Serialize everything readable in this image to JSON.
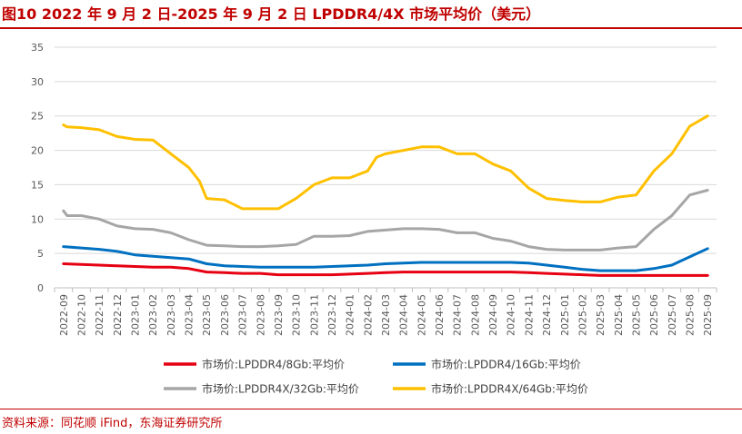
{
  "title": "图10  2022 年 9 月 2 日-2025 年 9 月 2 日 LPDDR4/4X 市场平均价（美元）",
  "source": "资料来源：同花顺 iFind，东海证券研究所",
  "colors": {
    "accent": "#c00000",
    "grid": "#d9d9d9",
    "axis": "#bfbfbf",
    "text": "#595959"
  },
  "chart_data": {
    "type": "line",
    "title": "2022 年 9 月 2 日-2025 年 9 月 2 日 LPDDR4/4X 市场平均价（美元）",
    "xlabel": "",
    "ylabel": "",
    "ylim": [
      0,
      35
    ],
    "yticks": [
      0,
      5,
      10,
      15,
      20,
      25,
      30,
      35
    ],
    "grid": true,
    "legend_position": "bottom",
    "categories": [
      "2022-09",
      "2022-10",
      "2022-11",
      "2022-12",
      "2023-01",
      "2023-02",
      "2023-03",
      "2023-04",
      "2023-05",
      "2023-06",
      "2023-07",
      "2023-08",
      "2023-09",
      "2023-10",
      "2023-11",
      "2023-12",
      "2024-01",
      "2024-02",
      "2024-03",
      "2024-04",
      "2024-05",
      "2024-06",
      "2024-07",
      "2024-08",
      "2024-09",
      "2024-10",
      "2024-11",
      "2024-12",
      "2025-01",
      "2025-02",
      "2025-03",
      "2025-04",
      "2025-05",
      "2025-06",
      "2025-07",
      "2025-08",
      "2025-09"
    ],
    "series": [
      {
        "name": "市场价:LPDDR4/8Gb:平均价",
        "color": "#e60012",
        "points": [
          [
            0,
            3.5
          ],
          [
            1,
            3.4
          ],
          [
            2,
            3.3
          ],
          [
            3,
            3.2
          ],
          [
            4,
            3.1
          ],
          [
            5,
            3.0
          ],
          [
            6,
            3.0
          ],
          [
            7,
            2.8
          ],
          [
            8,
            2.3
          ],
          [
            9,
            2.2
          ],
          [
            10,
            2.1
          ],
          [
            11,
            2.1
          ],
          [
            12,
            1.9
          ],
          [
            13,
            1.9
          ],
          [
            14,
            1.9
          ],
          [
            15,
            1.9
          ],
          [
            16,
            2.0
          ],
          [
            17,
            2.1
          ],
          [
            18,
            2.2
          ],
          [
            19,
            2.3
          ],
          [
            20,
            2.3
          ],
          [
            21,
            2.3
          ],
          [
            22,
            2.3
          ],
          [
            23,
            2.3
          ],
          [
            24,
            2.3
          ],
          [
            25,
            2.3
          ],
          [
            26,
            2.2
          ],
          [
            27,
            2.1
          ],
          [
            28,
            2.0
          ],
          [
            29,
            1.9
          ],
          [
            30,
            1.8
          ],
          [
            31,
            1.8
          ],
          [
            32,
            1.8
          ],
          [
            33,
            1.8
          ],
          [
            34,
            1.8
          ],
          [
            35,
            1.8
          ],
          [
            36,
            1.8
          ]
        ]
      },
      {
        "name": "市场价:LPDDR4/16Gb:平均价",
        "color": "#0070c0",
        "points": [
          [
            0,
            6.0
          ],
          [
            1,
            5.8
          ],
          [
            2,
            5.6
          ],
          [
            3,
            5.3
          ],
          [
            4,
            4.8
          ],
          [
            5,
            4.6
          ],
          [
            6,
            4.4
          ],
          [
            7,
            4.2
          ],
          [
            8,
            3.5
          ],
          [
            9,
            3.2
          ],
          [
            10,
            3.1
          ],
          [
            11,
            3.0
          ],
          [
            12,
            3.0
          ],
          [
            13,
            3.0
          ],
          [
            14,
            3.0
          ],
          [
            15,
            3.1
          ],
          [
            16,
            3.2
          ],
          [
            17,
            3.3
          ],
          [
            18,
            3.5
          ],
          [
            19,
            3.6
          ],
          [
            20,
            3.7
          ],
          [
            21,
            3.7
          ],
          [
            22,
            3.7
          ],
          [
            23,
            3.7
          ],
          [
            24,
            3.7
          ],
          [
            25,
            3.7
          ],
          [
            26,
            3.6
          ],
          [
            27,
            3.3
          ],
          [
            28,
            3.0
          ],
          [
            29,
            2.7
          ],
          [
            30,
            2.5
          ],
          [
            31,
            2.5
          ],
          [
            32,
            2.5
          ],
          [
            33,
            2.8
          ],
          [
            34,
            3.3
          ],
          [
            35,
            4.5
          ],
          [
            36,
            5.7
          ]
        ]
      },
      {
        "name": "市场价:LPDDR4X/32Gb:平均价",
        "color": "#a6a6a6",
        "points": [
          [
            0,
            11.2
          ],
          [
            0.2,
            10.5
          ],
          [
            1,
            10.5
          ],
          [
            2,
            10.0
          ],
          [
            3,
            9.0
          ],
          [
            4,
            8.6
          ],
          [
            5,
            8.5
          ],
          [
            6,
            8.0
          ],
          [
            7,
            7.0
          ],
          [
            8,
            6.2
          ],
          [
            9,
            6.1
          ],
          [
            10,
            6.0
          ],
          [
            11,
            6.0
          ],
          [
            12,
            6.1
          ],
          [
            13,
            6.3
          ],
          [
            14,
            7.5
          ],
          [
            15,
            7.5
          ],
          [
            16,
            7.6
          ],
          [
            17,
            8.2
          ],
          [
            18,
            8.4
          ],
          [
            19,
            8.6
          ],
          [
            20,
            8.6
          ],
          [
            21,
            8.5
          ],
          [
            22,
            8.0
          ],
          [
            23,
            8.0
          ],
          [
            24,
            7.2
          ],
          [
            25,
            6.8
          ],
          [
            26,
            6.0
          ],
          [
            27,
            5.6
          ],
          [
            28,
            5.5
          ],
          [
            29,
            5.5
          ],
          [
            30,
            5.5
          ],
          [
            31,
            5.8
          ],
          [
            32,
            6.0
          ],
          [
            33,
            8.5
          ],
          [
            34,
            10.5
          ],
          [
            35,
            13.5
          ],
          [
            36,
            14.2
          ]
        ]
      },
      {
        "name": "市场价:LPDDR4X/64Gb:平均价",
        "color": "#ffc000",
        "points": [
          [
            0,
            23.7
          ],
          [
            0.2,
            23.4
          ],
          [
            1,
            23.3
          ],
          [
            2,
            23.0
          ],
          [
            3,
            22.0
          ],
          [
            4,
            21.6
          ],
          [
            5,
            21.5
          ],
          [
            6,
            19.5
          ],
          [
            7,
            17.5
          ],
          [
            7.6,
            15.5
          ],
          [
            8,
            13.0
          ],
          [
            9,
            12.8
          ],
          [
            10,
            11.5
          ],
          [
            11,
            11.5
          ],
          [
            12,
            11.5
          ],
          [
            13,
            13.0
          ],
          [
            14,
            15.0
          ],
          [
            15,
            16.0
          ],
          [
            16,
            16.0
          ],
          [
            17,
            17.0
          ],
          [
            17.5,
            19.0
          ],
          [
            18,
            19.5
          ],
          [
            19,
            20.0
          ],
          [
            20,
            20.5
          ],
          [
            21,
            20.5
          ],
          [
            22,
            19.5
          ],
          [
            23,
            19.5
          ],
          [
            24,
            18.0
          ],
          [
            25,
            17.0
          ],
          [
            26,
            14.5
          ],
          [
            27,
            13.0
          ],
          [
            28,
            12.7
          ],
          [
            29,
            12.5
          ],
          [
            30,
            12.5
          ],
          [
            31,
            13.2
          ],
          [
            32,
            13.5
          ],
          [
            33,
            17.0
          ],
          [
            34,
            19.5
          ],
          [
            35,
            23.5
          ],
          [
            36,
            25.0
          ]
        ]
      }
    ]
  }
}
